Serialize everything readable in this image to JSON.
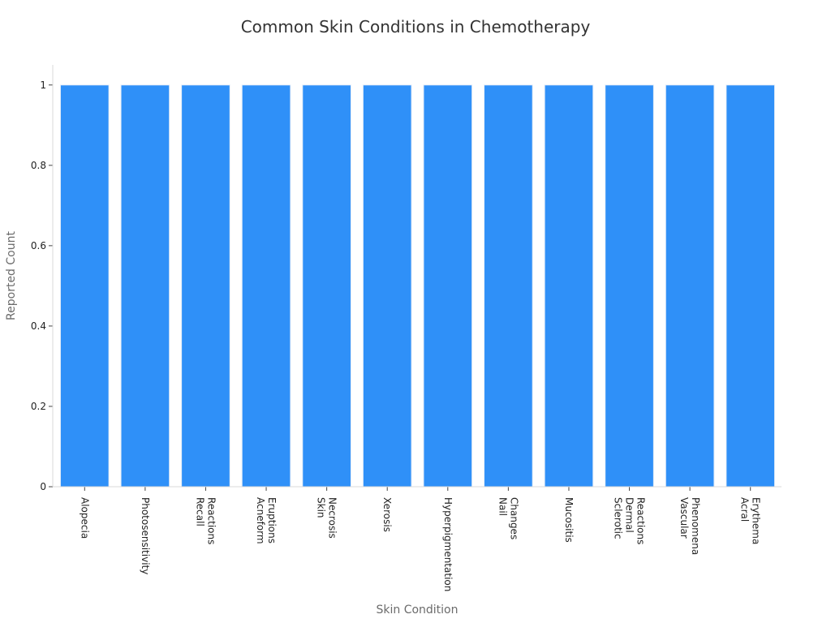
{
  "chart_data": {
    "type": "bar",
    "title": "Common Skin Conditions in Chemotherapy",
    "xlabel": "Skin Condition",
    "ylabel": "Reported Count",
    "categories": [
      [
        "Alopecia"
      ],
      [
        "Photosensitivity"
      ],
      [
        "Recall",
        "Reactions"
      ],
      [
        "Acneform",
        "Eruptions"
      ],
      [
        "Skin",
        "Necrosis"
      ],
      [
        "Xerosis"
      ],
      [
        "Hyperpigmentation"
      ],
      [
        "Nail",
        "Changes"
      ],
      [
        "Mucositis"
      ],
      [
        "Sclerotic",
        "Dermal",
        "Reactions"
      ],
      [
        "Vascular",
        "Phenomena"
      ],
      [
        "Acral",
        "Erythema"
      ]
    ],
    "values": [
      1,
      1,
      1,
      1,
      1,
      1,
      1,
      1,
      1,
      1,
      1,
      1
    ],
    "ylim": [
      0,
      1.05
    ],
    "yticks": [
      {
        "value": 0,
        "label": "0"
      },
      {
        "value": 0.2,
        "label": "0.2"
      },
      {
        "value": 0.4,
        "label": "0.4"
      },
      {
        "value": 0.6,
        "label": "0.6"
      },
      {
        "value": 0.8,
        "label": "0.8"
      },
      {
        "value": 1,
        "label": "1"
      }
    ],
    "grid": false,
    "bar_color": "#2f90f8"
  }
}
